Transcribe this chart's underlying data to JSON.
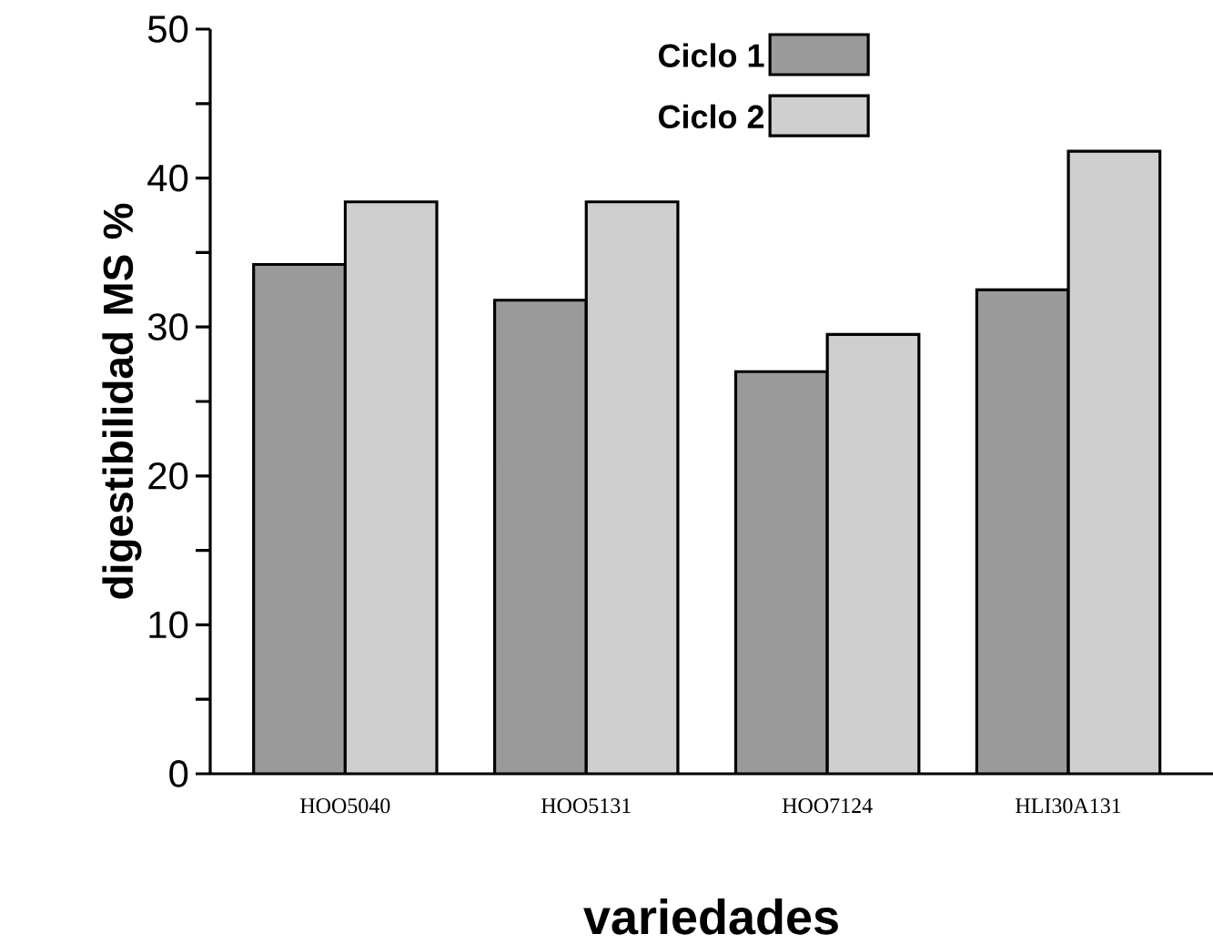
{
  "chart_data": {
    "type": "bar",
    "xlabel": "variedades",
    "ylabel": "digestibilidad MS %",
    "categories": [
      "HOO5040",
      "HOO5131",
      "HOO7124",
      "HLI30A131"
    ],
    "series": [
      {
        "name": "Ciclo 1",
        "color": "#9a9a9a",
        "values": [
          34.2,
          31.8,
          27.0,
          32.5
        ]
      },
      {
        "name": "Ciclo 2",
        "color": "#cfcfcf",
        "values": [
          38.4,
          38.4,
          29.5,
          41.8
        ]
      }
    ],
    "ylim": [
      0,
      50
    ],
    "yticks": [
      0,
      {
        "value": 5,
        "label": null
      },
      10,
      {
        "value": 15,
        "label": null
      },
      20,
      {
        "value": 25,
        "label": null
      },
      30,
      {
        "value": 35,
        "label": null
      },
      40,
      {
        "value": 45,
        "label": null
      },
      50
    ],
    "grid": false,
    "legend": "top"
  }
}
